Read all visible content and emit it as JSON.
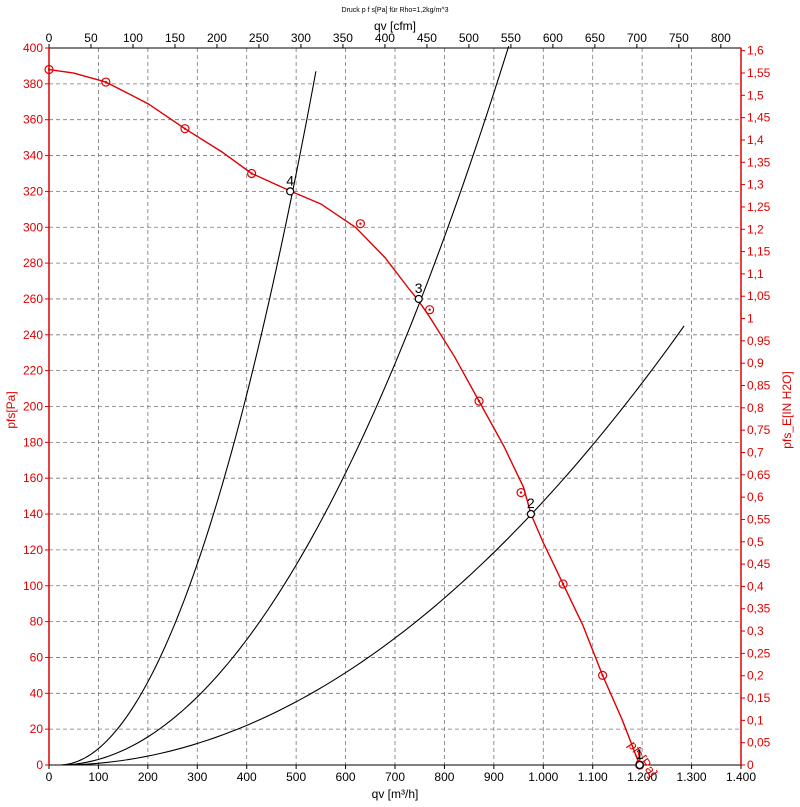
{
  "chart_data": {
    "type": "line",
    "title": "Druck p f s[Pa] für Rho=1,2kg/m^3",
    "xlabel": "qv [m³/h]",
    "x2label": "qv [cfm]",
    "ylabel": "pfs[Pa]",
    "y2label": "pfs_E[IN H2O]",
    "xlim": [
      0,
      1400
    ],
    "ylim": [
      0,
      400
    ],
    "x2lim": [
      0,
      824
    ],
    "y2lim": [
      0,
      1.606
    ],
    "grid": true,
    "colors": {
      "fan_curve": "#e00000",
      "system_curves": "#000000",
      "axis_accent": "#e00000"
    },
    "x_ticks": [
      "0",
      "100",
      "200",
      "300",
      "400",
      "500",
      "600",
      "700",
      "800",
      "900",
      "1.000",
      "1.100",
      "1.200",
      "1.300",
      "1.400"
    ],
    "x_tick_values": [
      0,
      100,
      200,
      300,
      400,
      500,
      600,
      700,
      800,
      900,
      1000,
      1100,
      1200,
      1300,
      1400
    ],
    "x2_ticks": [
      "0",
      "50",
      "100",
      "150",
      "200",
      "250",
      "300",
      "350",
      "400",
      "450",
      "500",
      "550",
      "600",
      "650",
      "700",
      "750",
      "800"
    ],
    "x2_tick_values": [
      0,
      50,
      100,
      150,
      200,
      250,
      300,
      350,
      400,
      450,
      500,
      550,
      600,
      650,
      700,
      750,
      800
    ],
    "y_ticks": [
      "0",
      "20",
      "40",
      "60",
      "80",
      "100",
      "120",
      "140",
      "160",
      "180",
      "200",
      "220",
      "240",
      "260",
      "280",
      "300",
      "320",
      "340",
      "360",
      "380",
      "400"
    ],
    "y_tick_values": [
      0,
      20,
      40,
      60,
      80,
      100,
      120,
      140,
      160,
      180,
      200,
      220,
      240,
      260,
      280,
      300,
      320,
      340,
      360,
      380,
      400
    ],
    "y2_ticks": [
      "0",
      "0,05",
      "0,1",
      "0,15",
      "0,2",
      "0,25",
      "0,3",
      "0,35",
      "0,4",
      "0,45",
      "0,5",
      "0,55",
      "0,6",
      "0,65",
      "0,7",
      "0,75",
      "0,8",
      "0,85",
      "0,9",
      "0,95",
      "1",
      "1,05",
      "1,1",
      "1,15",
      "1,2",
      "1,25",
      "1,3",
      "1,35",
      "1,4",
      "1,45",
      "1,5",
      "1,55",
      "1,6"
    ],
    "y2_tick_values": [
      0,
      0.05,
      0.1,
      0.15,
      0.2,
      0.25,
      0.3,
      0.35,
      0.4,
      0.45,
      0.5,
      0.55,
      0.6,
      0.65,
      0.7,
      0.75,
      0.8,
      0.85,
      0.9,
      0.95,
      1,
      1.05,
      1.1,
      1.15,
      1.2,
      1.25,
      1.3,
      1.35,
      1.4,
      1.45,
      1.5,
      1.55,
      1.6
    ],
    "series": [
      {
        "name": "pfs[Pa]",
        "color": "#e00000",
        "x": [
          0,
          50,
          115,
          200,
          275,
          350,
          410,
          490,
          550,
          620,
          680,
          730,
          745,
          770,
          820,
          870,
          920,
          960,
          975,
          1000,
          1040,
          1080,
          1120,
          1160,
          1195
        ],
        "y": [
          388,
          386,
          381,
          369,
          355,
          342,
          330,
          320,
          313,
          300,
          283,
          265,
          260,
          250,
          228,
          203,
          178,
          155,
          140,
          124,
          101,
          78,
          50,
          25,
          0
        ],
        "markers_x": [
          0,
          115,
          275,
          410,
          630,
          770,
          870,
          955,
          1040,
          1120,
          1195
        ],
        "markers_y": [
          388,
          381,
          355,
          330,
          302,
          254,
          203,
          152,
          101,
          50,
          0
        ]
      },
      {
        "curve": "system-4",
        "color": "#000000",
        "x": [
          20,
          540
        ],
        "y": [
          0,
          387
        ]
      },
      {
        "curve": "system-3",
        "color": "#000000",
        "x": [
          20,
          930
        ],
        "y": [
          0,
          401
        ]
      },
      {
        "curve": "system-2",
        "color": "#000000",
        "x": [
          20,
          1285
        ],
        "y": [
          0,
          245
        ]
      }
    ],
    "operating_points": [
      {
        "label": "1",
        "x": 1195,
        "y": 0
      },
      {
        "label": "2",
        "x": 975,
        "y": 140
      },
      {
        "label": "3",
        "x": 748,
        "y": 260
      },
      {
        "label": "4",
        "x": 488,
        "y": 320
      }
    ]
  }
}
